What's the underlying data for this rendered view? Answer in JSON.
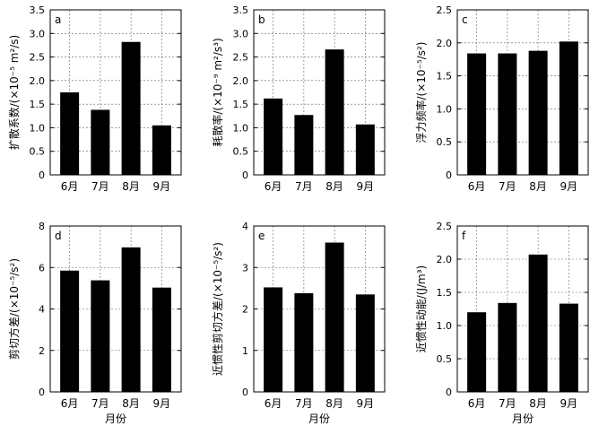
{
  "chart_data": [
    {
      "type": "bar",
      "panel_label": "a",
      "categories": [
        "6月",
        "7月",
        "8月",
        "9月"
      ],
      "values": [
        1.75,
        1.38,
        2.82,
        1.05
      ],
      "xlabel": "",
      "ylabel": "扩散系数/(×10⁻⁵ m²/s)",
      "ylim": [
        0,
        3.5
      ],
      "yticks": [
        "0",
        "0.5",
        "1.0",
        "1.5",
        "2.0",
        "2.5",
        "3.0",
        "3.5"
      ],
      "grid": true
    },
    {
      "type": "bar",
      "panel_label": "b",
      "categories": [
        "6月",
        "7月",
        "8月",
        "9月"
      ],
      "values": [
        1.62,
        1.27,
        2.66,
        1.07
      ],
      "xlabel": "",
      "ylabel": "耗散率/(×10⁻⁹ m²/s³)",
      "ylim": [
        0,
        3.5
      ],
      "yticks": [
        "0",
        "0.5",
        "1.0",
        "1.5",
        "2.0",
        "2.5",
        "3.0",
        "3.5"
      ],
      "grid": true
    },
    {
      "type": "bar",
      "panel_label": "c",
      "categories": [
        "6月",
        "7月",
        "8月",
        "9月"
      ],
      "values": [
        1.84,
        1.84,
        1.88,
        2.02
      ],
      "xlabel": "",
      "ylabel": "浮力频率/(×10⁻⁵/s²)",
      "ylim": [
        0,
        2.5
      ],
      "yticks": [
        "0",
        "0.5",
        "1.0",
        "1.5",
        "2.0",
        "2.5"
      ],
      "grid": true
    },
    {
      "type": "bar",
      "panel_label": "d",
      "categories": [
        "6月",
        "7月",
        "8月",
        "9月"
      ],
      "values": [
        5.85,
        5.38,
        6.97,
        5.03
      ],
      "xlabel": "月份",
      "ylabel": "剪切方差/(×10⁻⁵/s²)",
      "ylim": [
        0,
        8
      ],
      "yticks": [
        "0",
        "2",
        "4",
        "6",
        "8"
      ],
      "grid": true
    },
    {
      "type": "bar",
      "panel_label": "e",
      "categories": [
        "6月",
        "7月",
        "8月",
        "9月"
      ],
      "values": [
        2.52,
        2.38,
        3.6,
        2.35
      ],
      "xlabel": "月份",
      "ylabel": "近惯性剪切方差/(×10⁻⁵/s²)",
      "ylim": [
        0,
        4
      ],
      "yticks": [
        "0",
        "1",
        "2",
        "3",
        "4"
      ],
      "grid": true
    },
    {
      "type": "bar",
      "panel_label": "f",
      "categories": [
        "6月",
        "7月",
        "8月",
        "9月"
      ],
      "values": [
        1.2,
        1.34,
        2.07,
        1.33
      ],
      "xlabel": "月份",
      "ylabel": "近惯性动能/(J/m³)",
      "ylim": [
        0,
        2.5
      ],
      "yticks": [
        "0",
        "0.5",
        "1.0",
        "1.5",
        "2.0",
        "2.5"
      ],
      "grid": true
    }
  ],
  "style": {
    "bar_color": "#000000",
    "grid_color": "#666666",
    "axis_color": "#000000"
  }
}
